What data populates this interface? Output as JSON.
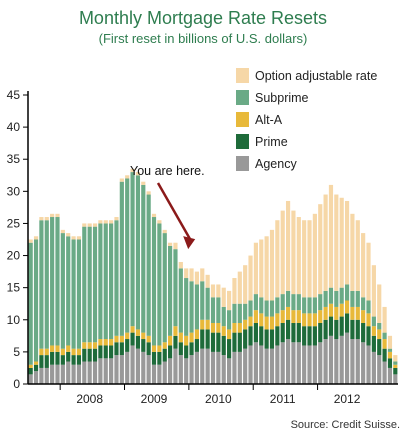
{
  "chart_data": {
    "type": "bar",
    "stacked": true,
    "title": "Monthly Mortgage Rate Resets",
    "subtitle": "(First reset in billions of U.S. dollars)",
    "source": "Source: Credit Suisse.",
    "annotation": "You are here.",
    "annotation_month_index": 29,
    "ylim": [
      0,
      45
    ],
    "yticks": [
      0,
      5,
      10,
      15,
      20,
      25,
      30,
      35,
      40,
      45
    ],
    "grid": false,
    "legend_position": "top-right",
    "x_start": "2007-08",
    "year_labels": [
      {
        "label": "2008",
        "month_index": 11
      },
      {
        "label": "2009",
        "month_index": 23
      },
      {
        "label": "2010",
        "month_index": 35
      },
      {
        "label": "2011",
        "month_index": 47
      },
      {
        "label": "2012",
        "month_index": 59
      }
    ],
    "series": [
      {
        "name": "Agency",
        "color": "#999999",
        "values": [
          1.5,
          2,
          2.5,
          2.5,
          3,
          3,
          3,
          3.5,
          3,
          3,
          3.5,
          3.5,
          3.5,
          4,
          4,
          4,
          4.5,
          4.5,
          5,
          6,
          5.5,
          5,
          4.5,
          3,
          3,
          3.5,
          4,
          5.5,
          4.5,
          4,
          4.5,
          5,
          5.5,
          5.5,
          5,
          5,
          4.5,
          4,
          5,
          5,
          5.5,
          6,
          6.5,
          6,
          5.5,
          5.5,
          6,
          6.5,
          7,
          6.5,
          6.5,
          6,
          6,
          6,
          6.5,
          7,
          7.5,
          7,
          7.5,
          8,
          7,
          7,
          6.5,
          6,
          5,
          4.5,
          3.5,
          2.5,
          1.5
        ]
      },
      {
        "name": "Prime",
        "color": "#1e6b3a",
        "values": [
          1,
          1,
          2,
          2,
          2,
          2,
          1.5,
          1.5,
          1.5,
          1.5,
          2,
          2,
          2,
          2,
          2,
          2,
          2,
          2,
          2,
          2,
          2,
          2,
          2,
          2,
          2,
          2,
          2,
          2,
          2,
          2,
          2,
          2,
          3,
          3,
          3,
          3,
          3,
          3,
          3,
          3,
          3,
          3,
          3,
          3,
          3,
          3,
          3,
          3,
          3,
          3,
          3,
          3,
          3,
          3,
          3,
          3,
          3,
          3,
          3,
          3,
          3,
          3,
          3,
          3,
          2.5,
          2.5,
          2,
          1.5,
          1
        ]
      },
      {
        "name": "Alt-A",
        "color": "#e8b93a",
        "values": [
          0.5,
          0.5,
          1,
          1,
          1,
          1,
          1,
          1,
          1,
          1,
          1,
          1,
          1,
          1,
          1,
          1,
          1,
          1,
          1,
          1,
          1,
          1,
          1,
          1,
          1,
          1,
          1.5,
          1.5,
          1.5,
          1.5,
          1.5,
          1.5,
          1.5,
          1.5,
          1.5,
          1.5,
          1.5,
          1.5,
          1.5,
          1.5,
          1.5,
          1.5,
          2,
          2,
          2,
          2,
          2,
          2,
          2,
          2,
          2,
          2,
          2,
          2,
          2,
          2,
          2,
          2,
          2,
          2,
          2,
          2,
          2,
          2,
          1.5,
          1.5,
          1.5,
          1,
          0.5
        ]
      },
      {
        "name": "Subprime",
        "color": "#6aaa86",
        "values": [
          19,
          19,
          20,
          20,
          20,
          20,
          18,
          17,
          17,
          17,
          18,
          18,
          18,
          18,
          18,
          18,
          18,
          24,
          24,
          24,
          24,
          23,
          22,
          20,
          19,
          17,
          14,
          12,
          10,
          9,
          8,
          7,
          6,
          5,
          4,
          4,
          3,
          3,
          3,
          3,
          2.5,
          2.5,
          2.5,
          2.5,
          2.5,
          2.5,
          2.5,
          2.5,
          2.5,
          2.5,
          2.5,
          2.5,
          2.5,
          2.5,
          2.5,
          2.5,
          2.5,
          2.5,
          2.5,
          2.5,
          2.5,
          2.5,
          2,
          2,
          1.5,
          1,
          1,
          0.5,
          0.5
        ]
      },
      {
        "name": "Option adjustable rate",
        "color": "#f6d7a7",
        "values": [
          0.5,
          0.5,
          0.5,
          0.5,
          0.5,
          0.5,
          0.5,
          0.5,
          0.5,
          0.5,
          0.5,
          0.5,
          0.5,
          0.5,
          0.5,
          0.5,
          0.5,
          0.5,
          0.5,
          0.5,
          0.5,
          0.5,
          0.5,
          0.5,
          0.5,
          0.5,
          0.5,
          1,
          1,
          1.5,
          2,
          2,
          2,
          2,
          2,
          2,
          3,
          3,
          4,
          5,
          6,
          7,
          8,
          9,
          10,
          11,
          12,
          13,
          14,
          13,
          12,
          12,
          12,
          13,
          14,
          15,
          16,
          15,
          14,
          13,
          12,
          11,
          10,
          9,
          8,
          6,
          4,
          2,
          1
        ]
      }
    ]
  }
}
